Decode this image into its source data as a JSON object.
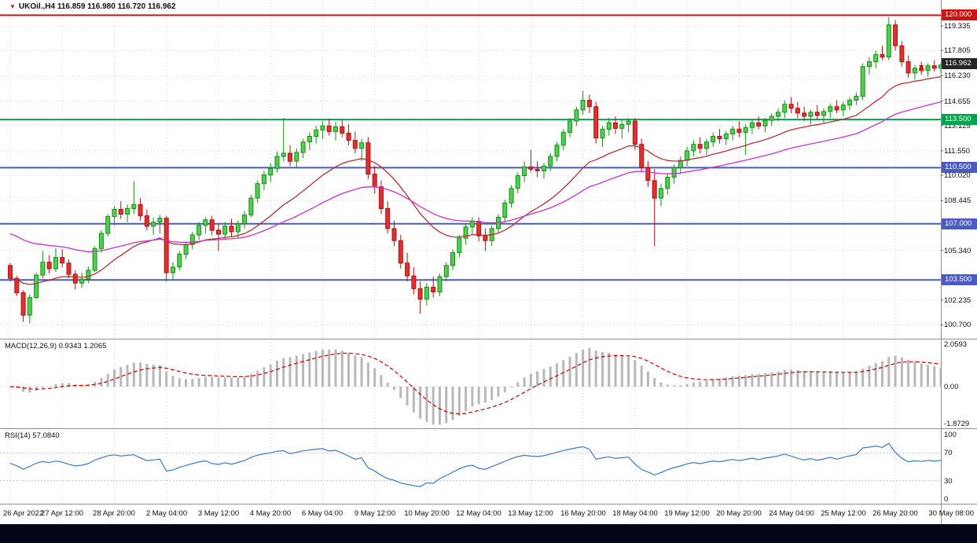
{
  "window": {
    "bg": "#FFFFFF",
    "bottom_bar_color": "#05051A"
  },
  "chart_data": {
    "type": "candlestick",
    "title": "UKOil.,H4 116.859 116.980 116.720 116.962",
    "symbol": "UKOil.",
    "timeframe": "H4",
    "marker_glyph": "▼",
    "ohlc": {
      "open": 116.859,
      "high": 116.98,
      "low": 116.72,
      "close": 116.962
    },
    "candle_colors": {
      "up": "#52CC52",
      "up_border": "#149014",
      "down": "#E03030",
      "down_border": "#B01010"
    },
    "y_ticks": [
      {
        "t": "119.335",
        "v": 119.335
      },
      {
        "t": "117.805",
        "v": 117.805
      },
      {
        "t": "116.230",
        "v": 116.23
      },
      {
        "t": "114.655",
        "v": 114.655
      },
      {
        "t": "113.125",
        "v": 113.125
      },
      {
        "t": "111.550",
        "v": 111.55
      },
      {
        "t": "110.020",
        "v": 110.02
      },
      {
        "t": "108.445",
        "v": 108.445
      },
      {
        "t": "105.340",
        "v": 105.34
      },
      {
        "t": "102.235",
        "v": 102.235
      },
      {
        "t": "100.700",
        "v": 100.7
      }
    ],
    "levels": [
      {
        "t": "120.000",
        "v": 120.0,
        "color": "#CC1414",
        "line": true
      },
      {
        "t": "116.962",
        "v": 116.962,
        "color": "#262626",
        "line": false
      },
      {
        "t": "113.500",
        "v": 113.5,
        "color": "#00A44C",
        "line": true
      },
      {
        "t": "110.500",
        "v": 110.5,
        "color": "#4A5BBF",
        "line": true
      },
      {
        "t": "107.000",
        "v": 107.0,
        "color": "#4A5BBF",
        "line": true
      },
      {
        "t": "103.500",
        "v": 103.5,
        "color": "#4A5BBF",
        "line": true
      }
    ],
    "moving_averages": [
      {
        "name": "ma-fast",
        "period": 20,
        "color": "#B43030"
      },
      {
        "name": "ma-slow",
        "period": 45,
        "seed": 106.5,
        "color": "#C832C8"
      }
    ],
    "x_labels": [
      {
        "i": 0,
        "t": "26 Apr 2022"
      },
      {
        "i": 8,
        "t": "27 Apr 12:00"
      },
      {
        "i": 16,
        "t": "28 Apr 20:00"
      },
      {
        "i": 24,
        "t": "2 May 04:00"
      },
      {
        "i": 32,
        "t": "3 May 12:00"
      },
      {
        "i": 40,
        "t": "4 May 20:00"
      },
      {
        "i": 48,
        "t": "6 May 04:00"
      },
      {
        "i": 56,
        "t": "9 May 12:00"
      },
      {
        "i": 64,
        "t": "10 May 20:00"
      },
      {
        "i": 72,
        "t": "12 May 04:00"
      },
      {
        "i": 80,
        "t": "13 May 12:00"
      },
      {
        "i": 88,
        "t": "16 May 20:00"
      },
      {
        "i": 96,
        "t": "18 May 04:00"
      },
      {
        "i": 104,
        "t": "19 May 12:00"
      },
      {
        "i": 112,
        "t": "20 May 20:00"
      },
      {
        "i": 120,
        "t": "24 May 04:00"
      },
      {
        "i": 128,
        "t": "25 May 12:00"
      },
      {
        "i": 136,
        "t": "26 May 20:00"
      },
      {
        "i": 144,
        "t": "30 May 08:00"
      }
    ],
    "macd": {
      "label": "MACD(12,26,9) 0.9343 1.2065",
      "params": [
        12,
        26,
        9
      ],
      "values_text": [
        "0.9343",
        "1.2065"
      ],
      "y_ticks": [
        "2.0593",
        "0.00",
        "-1.8729"
      ],
      "hist_color": "#B8B8B8",
      "signal_color": "#C00000"
    },
    "rsi": {
      "label": "RSI(14) 57.0840",
      "period": 14,
      "value_text": "57.0840",
      "levels": [
        70,
        30
      ],
      "y_ticks": [
        "100",
        "70",
        "30",
        "0"
      ],
      "line_color": "#3A78C8"
    },
    "marker": {
      "index": 140,
      "value": 116.78,
      "color": "#CC0000"
    },
    "candles": [
      [
        104.4,
        104.55,
        103.4,
        103.6
      ],
      [
        103.6,
        103.75,
        102.5,
        102.7
      ],
      [
        102.7,
        102.85,
        100.9,
        101.3
      ],
      [
        101.3,
        102.6,
        100.8,
        102.4
      ],
      [
        102.4,
        103.95,
        102.3,
        103.8
      ],
      [
        103.8,
        105.3,
        103.6,
        104.6
      ],
      [
        104.6,
        105.05,
        103.9,
        104.2
      ],
      [
        104.2,
        105.5,
        104.0,
        104.9
      ],
      [
        104.9,
        105.4,
        104.3,
        104.55
      ],
      [
        104.55,
        104.8,
        103.6,
        103.85
      ],
      [
        103.85,
        104.1,
        102.9,
        103.3
      ],
      [
        103.3,
        103.95,
        103.0,
        103.55
      ],
      [
        103.55,
        104.35,
        103.3,
        104.1
      ],
      [
        104.1,
        105.6,
        104.0,
        105.45
      ],
      [
        105.45,
        106.6,
        105.2,
        106.4
      ],
      [
        106.4,
        107.6,
        106.2,
        107.45
      ],
      [
        107.45,
        108.1,
        106.9,
        107.9
      ],
      [
        107.9,
        108.4,
        107.3,
        107.6
      ],
      [
        107.6,
        108.2,
        107.1,
        107.95
      ],
      [
        107.95,
        109.65,
        107.6,
        108.2
      ],
      [
        108.2,
        108.6,
        107.2,
        107.5
      ],
      [
        107.5,
        107.9,
        106.6,
        106.85
      ],
      [
        106.85,
        107.4,
        106.3,
        107.1
      ],
      [
        107.1,
        107.55,
        106.4,
        107.35
      ],
      [
        107.35,
        107.5,
        103.4,
        103.95
      ],
      [
        103.95,
        104.6,
        103.5,
        104.3
      ],
      [
        104.3,
        105.3,
        104.1,
        105.1
      ],
      [
        105.1,
        105.9,
        104.8,
        105.7
      ],
      [
        105.7,
        106.5,
        105.4,
        106.3
      ],
      [
        106.3,
        107.1,
        106.0,
        106.9
      ],
      [
        106.9,
        107.4,
        106.4,
        107.25
      ],
      [
        107.25,
        107.5,
        106.3,
        106.6
      ],
      [
        106.6,
        107.0,
        105.3,
        106.35
      ],
      [
        106.35,
        107.1,
        106.0,
        106.85
      ],
      [
        106.85,
        107.3,
        106.2,
        106.5
      ],
      [
        106.5,
        107.2,
        106.1,
        107.0
      ],
      [
        107.0,
        107.8,
        106.7,
        107.55
      ],
      [
        107.55,
        108.8,
        107.4,
        108.6
      ],
      [
        108.6,
        109.7,
        108.3,
        109.5
      ],
      [
        109.5,
        110.3,
        109.1,
        110.05
      ],
      [
        110.05,
        110.8,
        109.6,
        110.45
      ],
      [
        110.45,
        111.5,
        110.2,
        111.2
      ],
      [
        111.2,
        113.6,
        110.9,
        111.4
      ],
      [
        111.4,
        111.9,
        110.6,
        110.9
      ],
      [
        110.9,
        111.7,
        110.5,
        111.45
      ],
      [
        111.45,
        112.3,
        111.1,
        112.1
      ],
      [
        112.1,
        112.7,
        111.6,
        112.45
      ],
      [
        112.45,
        113.1,
        112.0,
        112.85
      ],
      [
        112.85,
        113.4,
        112.3,
        113.1
      ],
      [
        113.1,
        113.55,
        112.5,
        112.75
      ],
      [
        112.75,
        113.35,
        112.2,
        113.05
      ],
      [
        113.05,
        113.5,
        112.4,
        112.65
      ],
      [
        112.65,
        113.2,
        111.9,
        112.2
      ],
      [
        112.2,
        112.75,
        111.4,
        111.7
      ],
      [
        111.7,
        112.3,
        110.9,
        112.05
      ],
      [
        112.05,
        112.4,
        109.8,
        110.1
      ],
      [
        110.1,
        110.6,
        108.9,
        109.3
      ],
      [
        109.3,
        109.7,
        107.6,
        107.95
      ],
      [
        107.95,
        108.4,
        106.4,
        106.7
      ],
      [
        106.7,
        107.2,
        105.6,
        105.95
      ],
      [
        105.95,
        106.3,
        104.2,
        104.55
      ],
      [
        104.55,
        105.2,
        103.4,
        103.75
      ],
      [
        103.75,
        104.3,
        102.6,
        102.95
      ],
      [
        102.95,
        103.4,
        101.4,
        102.3
      ],
      [
        102.3,
        103.3,
        101.9,
        103.05
      ],
      [
        103.05,
        103.7,
        102.4,
        102.75
      ],
      [
        102.75,
        103.9,
        102.5,
        103.7
      ],
      [
        103.7,
        104.6,
        103.4,
        104.4
      ],
      [
        104.4,
        105.4,
        104.1,
        105.2
      ],
      [
        105.2,
        106.3,
        104.9,
        106.1
      ],
      [
        106.1,
        107.0,
        105.7,
        106.8
      ],
      [
        106.8,
        107.4,
        106.3,
        107.15
      ],
      [
        107.15,
        107.4,
        105.9,
        106.25
      ],
      [
        106.25,
        106.7,
        105.3,
        105.95
      ],
      [
        105.95,
        106.9,
        105.6,
        106.7
      ],
      [
        106.7,
        107.6,
        106.4,
        107.4
      ],
      [
        107.4,
        108.5,
        107.1,
        108.3
      ],
      [
        108.3,
        109.4,
        108.0,
        109.2
      ],
      [
        109.2,
        110.2,
        108.9,
        110.0
      ],
      [
        110.0,
        110.9,
        109.6,
        110.55
      ],
      [
        110.55,
        111.6,
        110.2,
        110.4
      ],
      [
        110.4,
        110.9,
        109.9,
        110.3
      ],
      [
        110.3,
        110.8,
        109.8,
        110.6
      ],
      [
        110.6,
        111.4,
        110.3,
        111.2
      ],
      [
        111.2,
        112.1,
        110.9,
        111.9
      ],
      [
        111.9,
        112.9,
        111.6,
        112.7
      ],
      [
        112.7,
        113.6,
        112.4,
        113.4
      ],
      [
        113.4,
        114.3,
        113.1,
        114.1
      ],
      [
        114.1,
        115.3,
        113.8,
        114.7
      ],
      [
        114.7,
        115.05,
        113.9,
        114.3
      ],
      [
        114.3,
        114.6,
        112.0,
        112.35
      ],
      [
        112.35,
        113.1,
        111.8,
        112.9
      ],
      [
        112.9,
        113.6,
        112.5,
        113.3
      ],
      [
        113.3,
        113.7,
        112.6,
        112.95
      ],
      [
        112.95,
        113.5,
        112.3,
        113.2
      ],
      [
        113.2,
        113.6,
        112.7,
        113.4
      ],
      [
        113.4,
        113.6,
        111.6,
        111.95
      ],
      [
        111.95,
        112.3,
        110.2,
        110.5
      ],
      [
        110.5,
        110.9,
        109.3,
        109.7
      ],
      [
        109.7,
        110.4,
        105.6,
        108.6
      ],
      [
        108.6,
        109.5,
        108.1,
        109.2
      ],
      [
        109.2,
        110.1,
        108.8,
        109.9
      ],
      [
        109.9,
        110.7,
        109.5,
        110.5
      ],
      [
        110.5,
        111.2,
        110.1,
        110.95
      ],
      [
        110.95,
        111.8,
        110.6,
        111.55
      ],
      [
        111.55,
        112.2,
        111.2,
        111.95
      ],
      [
        111.95,
        112.4,
        111.4,
        111.7
      ],
      [
        111.7,
        112.3,
        111.3,
        112.1
      ],
      [
        112.1,
        112.7,
        111.8,
        112.45
      ],
      [
        112.45,
        112.9,
        112.0,
        112.3
      ],
      [
        112.3,
        112.8,
        111.9,
        112.6
      ],
      [
        112.6,
        113.1,
        112.2,
        112.9
      ],
      [
        112.9,
        113.4,
        112.4,
        112.7
      ],
      [
        112.7,
        113.2,
        111.3,
        113.0
      ],
      [
        113.0,
        113.5,
        112.6,
        113.3
      ],
      [
        113.3,
        113.7,
        112.9,
        113.1
      ],
      [
        113.1,
        113.6,
        112.7,
        113.45
      ],
      [
        113.45,
        113.9,
        113.1,
        113.7
      ],
      [
        113.7,
        114.2,
        113.4,
        113.95
      ],
      [
        113.95,
        114.7,
        113.6,
        114.45
      ],
      [
        114.45,
        114.9,
        113.9,
        114.2
      ],
      [
        114.2,
        114.6,
        113.6,
        113.9
      ],
      [
        113.9,
        114.3,
        113.4,
        113.7
      ],
      [
        113.7,
        114.1,
        113.2,
        113.95
      ],
      [
        113.95,
        114.4,
        113.5,
        113.75
      ],
      [
        113.75,
        114.2,
        113.3,
        114.0
      ],
      [
        114.0,
        114.5,
        113.6,
        114.3
      ],
      [
        114.3,
        114.7,
        113.9,
        114.1
      ],
      [
        114.1,
        114.6,
        113.7,
        114.4
      ],
      [
        114.4,
        114.9,
        114.1,
        114.7
      ],
      [
        114.7,
        115.2,
        114.4,
        114.95
      ],
      [
        114.95,
        117.0,
        114.7,
        116.8
      ],
      [
        116.8,
        117.4,
        116.3,
        117.1
      ],
      [
        117.1,
        117.8,
        116.7,
        117.55
      ],
      [
        117.55,
        118.1,
        117.2,
        117.4
      ],
      [
        117.4,
        119.9,
        117.2,
        119.4
      ],
      [
        119.4,
        119.7,
        117.8,
        118.1
      ],
      [
        118.1,
        118.4,
        116.8,
        117.1
      ],
      [
        117.1,
        117.5,
        116.1,
        116.4
      ],
      [
        116.4,
        116.9,
        116.0,
        116.7
      ],
      [
        116.7,
        117.1,
        116.3,
        116.55
      ],
      [
        116.55,
        117.0,
        116.2,
        116.85
      ],
      [
        116.85,
        117.2,
        116.5,
        116.7
      ],
      [
        116.7,
        117.05,
        116.4,
        116.9
      ],
      [
        116.86,
        116.98,
        116.72,
        116.96
      ]
    ]
  }
}
